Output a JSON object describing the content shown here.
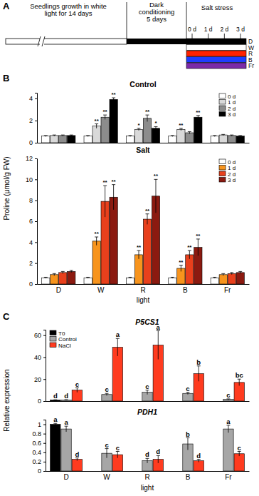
{
  "panel_labels": [
    "A",
    "B",
    "C"
  ],
  "diagram": {
    "stages": [
      {
        "lines": [
          "Seedlings growth in white",
          "light for 14 days"
        ]
      },
      {
        "lines": [
          "Dark",
          "conditioning",
          "5 days"
        ]
      },
      {
        "lines": [
          "Salt stress"
        ]
      }
    ],
    "days": [
      "0 d",
      "1 d",
      "2 d",
      "3 d"
    ],
    "treatments": [
      {
        "label": "D",
        "color": "#000000"
      },
      {
        "label": "W",
        "color": "#ffffff"
      },
      {
        "label": "R",
        "color": "#ff2200"
      },
      {
        "label": "B",
        "color": "#1f3dff"
      },
      {
        "label": "Fr",
        "color": "#7a2aa8"
      }
    ]
  },
  "chart_data": [
    {
      "type": "bar",
      "title": "Control",
      "categories": [
        "D",
        "W",
        "R",
        "B",
        "Fr"
      ],
      "series": [
        {
          "name": "0 d",
          "color": "#ffffff",
          "values": [
            0.6,
            0.6,
            0.6,
            0.6,
            0.6
          ],
          "errors": [
            0.05,
            0.05,
            0.05,
            0.05,
            0.05
          ]
        },
        {
          "name": "1 d",
          "color": "#d9d9d9",
          "values": [
            0.65,
            1.5,
            1.2,
            1.2,
            0.7
          ],
          "errors": [
            0.05,
            0.2,
            0.1,
            0.1,
            0.05
          ],
          "annotations": [
            null,
            "**",
            "*",
            "**",
            null
          ]
        },
        {
          "name": "2 d",
          "color": "#8c8c8c",
          "values": [
            0.65,
            2.3,
            2.2,
            0.9,
            0.65
          ],
          "errors": [
            0.05,
            0.2,
            0.3,
            0.1,
            0.05
          ],
          "annotations": [
            null,
            "**",
            "**",
            null,
            null
          ]
        },
        {
          "name": "3 d",
          "color": "#000000",
          "values": [
            0.65,
            3.9,
            1.3,
            2.3,
            0.6
          ],
          "errors": [
            0.05,
            0.15,
            0.15,
            0.15,
            0.05
          ],
          "annotations": [
            null,
            "**",
            "*",
            "**",
            null
          ]
        }
      ],
      "ylim": [
        0,
        4.5
      ],
      "yticks": [
        0,
        2,
        4
      ],
      "legend": "top-right",
      "tick_labels": "y"
    },
    {
      "type": "bar",
      "title": "Salt",
      "xlabel": "light",
      "ylabel": "Proline (μmol/g FW)",
      "categories": [
        "D",
        "W",
        "R",
        "B",
        "Fr"
      ],
      "series": [
        {
          "name": "0 d",
          "color": "#ffffff",
          "values": [
            0.6,
            0.6,
            0.6,
            0.6,
            0.6
          ],
          "errors": [
            0.05,
            0.05,
            0.05,
            0.05,
            0.05
          ]
        },
        {
          "name": "1 d",
          "color": "#f7941d",
          "values": [
            0.9,
            4.1,
            2.8,
            1.5,
            0.9
          ],
          "errors": [
            0.1,
            0.4,
            0.4,
            0.3,
            0.1
          ],
          "annotations": [
            null,
            "**",
            "**",
            "**",
            null
          ]
        },
        {
          "name": "2 d",
          "color": "#e8401c",
          "values": [
            1.1,
            7.9,
            6.2,
            2.8,
            1.0
          ],
          "errors": [
            0.1,
            1.5,
            0.5,
            0.4,
            0.1
          ],
          "annotations": [
            null,
            "**",
            "**",
            "**",
            null
          ]
        },
        {
          "name": "3 d",
          "color": "#8b1a10",
          "values": [
            1.2,
            8.3,
            8.4,
            3.5,
            1.1
          ],
          "errors": [
            0.1,
            1.2,
            1.6,
            0.8,
            0.1
          ],
          "annotations": [
            null,
            "**",
            "**",
            "**",
            null
          ]
        }
      ],
      "ylim": [
        0,
        12
      ],
      "yticks": [
        0,
        2,
        4,
        6,
        8,
        10,
        12
      ],
      "legend": "top-right"
    },
    {
      "type": "bar",
      "title": "P5CS1",
      "ylabel": "Relative expression",
      "categories": [
        "D",
        "W",
        "R",
        "B",
        "Fr"
      ],
      "series": [
        {
          "name": "T0",
          "color": "#000000",
          "values": [
            1,
            null,
            null,
            null,
            null
          ],
          "errors": [
            0.2,
            null,
            null,
            null,
            null
          ],
          "annotations": [
            "d",
            null,
            null,
            null,
            null
          ]
        },
        {
          "name": "Control",
          "color": "#a6a6a6",
          "values": [
            1,
            6,
            8,
            7,
            1.5
          ],
          "errors": [
            0.3,
            1,
            2,
            1,
            0.5
          ],
          "annotations": [
            "d",
            "c",
            "c",
            "c",
            "c"
          ]
        },
        {
          "name": "NaCl",
          "color": "#ff3b1f",
          "values": [
            10,
            49,
            51,
            25,
            17
          ],
          "errors": [
            2,
            8,
            13,
            7,
            3
          ],
          "annotations": [
            "c",
            "a",
            "a",
            "b",
            "bc"
          ]
        }
      ],
      "ylim": [
        0,
        65
      ],
      "yticks": [
        0,
        20,
        40,
        60
      ],
      "legend": "top-left",
      "tick_labels": "y"
    },
    {
      "type": "bar",
      "title": "PDH1",
      "xlabel": "light",
      "categories": [
        "D",
        "W",
        "R",
        "B",
        "Fr"
      ],
      "series": [
        {
          "name": "T0",
          "color": "#000000",
          "values": [
            1.0,
            null,
            null,
            null,
            null
          ],
          "errors": [
            0.02,
            null,
            null,
            null,
            null
          ],
          "annotations": [
            "a",
            null,
            null,
            null,
            null
          ]
        },
        {
          "name": "Control",
          "color": "#a6a6a6",
          "values": [
            0.9,
            0.38,
            0.22,
            0.58,
            0.9
          ],
          "errors": [
            0.06,
            0.1,
            0.05,
            0.13,
            0.08
          ],
          "annotations": [
            "a",
            "c",
            "d",
            "b",
            "a"
          ]
        },
        {
          "name": "NaCl",
          "color": "#ff3b1f",
          "values": [
            0.25,
            0.35,
            0.25,
            0.22,
            0.37
          ],
          "errors": [
            0.03,
            0.07,
            0.08,
            0.03,
            0.05
          ],
          "annotations": [
            "d",
            "c",
            "d",
            "d",
            "c"
          ]
        }
      ],
      "ylim": [
        0,
        1.1
      ],
      "yticks": [
        0,
        0.2,
        0.4,
        0.6,
        0.8,
        1
      ]
    }
  ]
}
